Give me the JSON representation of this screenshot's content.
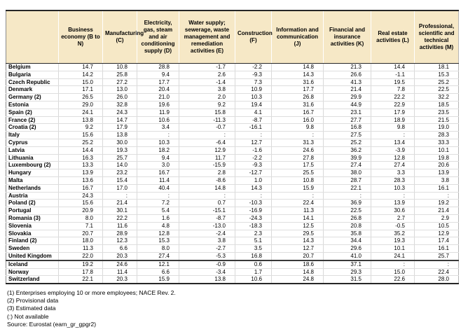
{
  "table": {
    "corner_label": "",
    "columns": [
      "Business economy (B to N)",
      "Manufacturing (C)",
      "Electricity, gas, steam and air conditioning supply (D)",
      "Water supply; sewerage, waste management and remediation activities (E)",
      "Construction (F)",
      "Information and communication (J)",
      "Financial and insurance activities (K)",
      "Real estate activities (L)",
      "Professional, scientific and technical activities (M)"
    ],
    "not_available_symbol": ":",
    "rows": [
      {
        "country": "Belgium",
        "group": "eu",
        "values": [
          "14.7",
          "10.8",
          "28.8",
          "-1.7",
          "-2.2",
          "14.8",
          "21.3",
          "14.4",
          "18.1"
        ]
      },
      {
        "country": "Bulgaria",
        "group": "eu",
        "values": [
          "14.2",
          "25.8",
          "9.4",
          "2.6",
          "-9.3",
          "14.3",
          "26.6",
          "-1.1",
          "15.3"
        ]
      },
      {
        "country": "Czech Republic",
        "group": "eu",
        "values": [
          "15.0",
          "27.2",
          "17.7",
          "-1.4",
          "7.3",
          "31.6",
          "41.3",
          "19.5",
          "25.2"
        ]
      },
      {
        "country": "Denmark",
        "group": "eu",
        "values": [
          "17.1",
          "13.0",
          "20.4",
          "3.8",
          "10.9",
          "17.7",
          "21.4",
          "7.8",
          "22.5"
        ]
      },
      {
        "country": "Germany (2)",
        "group": "eu",
        "values": [
          "26.5",
          "26.0",
          "21.0",
          "2.0",
          "10.3",
          "26.8",
          "29.9",
          "22.2",
          "32.2"
        ]
      },
      {
        "country": "Estonia",
        "group": "eu",
        "values": [
          "29.0",
          "32.8",
          "19.6",
          "9.2",
          "19.4",
          "31.6",
          "44.9",
          "22.9",
          "18.5"
        ]
      },
      {
        "country": "Spain (2)",
        "group": "eu",
        "values": [
          "24.1",
          "24.3",
          "11.9",
          "15.8",
          "4.1",
          "16.7",
          "23.1",
          "17.9",
          "23.5"
        ]
      },
      {
        "country": "France (2)",
        "group": "eu",
        "values": [
          "13.8",
          "14.7",
          "10.6",
          "-11.3",
          "-8.7",
          "16.0",
          "27.7",
          "18.9",
          "21.5"
        ]
      },
      {
        "country": "Croatia (2)",
        "group": "eu",
        "values": [
          "9.2",
          "17.9",
          "3.4",
          "-0.7",
          "-16.1",
          "9.8",
          "16.8",
          "9.8",
          "19.0"
        ]
      },
      {
        "country": "Italy",
        "group": "eu",
        "values": [
          "15.6",
          "13.8",
          ":",
          ":",
          ":",
          ":",
          "27.5",
          ":",
          "28.3"
        ]
      },
      {
        "country": "Cyprus",
        "group": "eu",
        "values": [
          "25.2",
          "30.0",
          "10.3",
          "-6.4",
          "12.7",
          "31.3",
          "25.2",
          "13.4",
          "33.3"
        ]
      },
      {
        "country": "Latvia",
        "group": "eu",
        "values": [
          "14.4",
          "19.3",
          "18.2",
          "12.9",
          "-1.6",
          "24.6",
          "36.2",
          "-3.9",
          "10.1"
        ]
      },
      {
        "country": "Lithuania",
        "group": "eu",
        "values": [
          "16.3",
          "25.7",
          "9.4",
          "11.7",
          "-2.2",
          "27.8",
          "39.9",
          "12.8",
          "19.8"
        ]
      },
      {
        "country": "Luxembourg (2)",
        "group": "eu",
        "values": [
          "13.3",
          "14.0",
          "3.0",
          "-15.9",
          "-9.3",
          "17.5",
          "27.4",
          "27.4",
          "20.6"
        ]
      },
      {
        "country": "Hungary",
        "group": "eu",
        "values": [
          "13.9",
          "23.2",
          "16.7",
          "2.8",
          "-12.7",
          "25.5",
          "38.0",
          "3.3",
          "13.9"
        ]
      },
      {
        "country": "Malta",
        "group": "eu",
        "values": [
          "13.6",
          "15.4",
          "11.4",
          "-8.6",
          "1.0",
          "10.8",
          "28.7",
          "28.3",
          "3.8"
        ]
      },
      {
        "country": "Netherlands",
        "group": "eu",
        "values": [
          "16.7",
          "17.0",
          "40.4",
          "14.8",
          "14.3",
          "15.9",
          "22.1",
          "10.3",
          "16.1"
        ]
      },
      {
        "country": "Austria",
        "group": "eu",
        "values": [
          "24.3",
          ":",
          ":",
          ":",
          ":",
          ":",
          ":",
          ":",
          ":"
        ]
      },
      {
        "country": "Poland (2)",
        "group": "eu",
        "values": [
          "15.6",
          "21.4",
          "7.2",
          "0.7",
          "-10.3",
          "22.4",
          "36.9",
          "13.9",
          "19.2"
        ]
      },
      {
        "country": "Portugal",
        "group": "eu",
        "values": [
          "20.9",
          "30.1",
          "5.4",
          "-15.1",
          "-16.9",
          "11.3",
          "22.5",
          "30.6",
          "21.4"
        ]
      },
      {
        "country": "Romania (3)",
        "group": "eu",
        "values": [
          "8.0",
          "22.2",
          "1.6",
          "-8.7",
          "-24.3",
          "14.1",
          "26.8",
          "2.7",
          "2.9"
        ]
      },
      {
        "country": "Slovenia",
        "group": "eu",
        "values": [
          "7.1",
          "11.6",
          "4.8",
          "-13.0",
          "-18.3",
          "12.5",
          "20.8",
          "-0.5",
          "10.5"
        ]
      },
      {
        "country": "Slovakia",
        "group": "eu",
        "values": [
          "20.7",
          "28.9",
          "12.8",
          "-2.4",
          "2.3",
          "29.5",
          "35.8",
          "35.2",
          "12.9"
        ]
      },
      {
        "country": "Finland (2)",
        "group": "eu",
        "values": [
          "18.0",
          "12.3",
          "15.3",
          "3.8",
          "5.1",
          "14.3",
          "34.4",
          "19.3",
          "17.4"
        ]
      },
      {
        "country": "Sweden",
        "group": "eu",
        "values": [
          "11.3",
          "6.6",
          "8.0",
          "-2.7",
          "3.5",
          "12.7",
          "29.6",
          "10.1",
          "16.1"
        ]
      },
      {
        "country": "United Kingdom",
        "group": "eu",
        "values": [
          "22.0",
          "20.3",
          "27.4",
          "-5.3",
          "16.8",
          "20.7",
          "41.0",
          "24.1",
          "25.7"
        ]
      },
      {
        "country": "Iceland",
        "group": "non-eu",
        "values": [
          "19.2",
          "24.6",
          "12.1",
          "-0.9",
          "0.6",
          "18.6",
          "37.1",
          ":",
          ":"
        ]
      },
      {
        "country": "Norway",
        "group": "non-eu",
        "values": [
          "17.8",
          "11.4",
          "6.6",
          "-3.4",
          "1.7",
          "14.8",
          "29.3",
          "15.0",
          "22.4"
        ]
      },
      {
        "country": "Switzerland",
        "group": "non-eu",
        "values": [
          "22.1",
          "20.3",
          "15.9",
          "13.8",
          "10.6",
          "24.8",
          "31.5",
          "22.6",
          "28.0"
        ]
      }
    ]
  },
  "footnotes": [
    "(1) Enterprises employing 10 or more employees; NACE Rev. 2.",
    "(2) Provisional data",
    "(3) Estimated data",
    "(:) Not available",
    "Source: Eurostat (earn_gr_gpgr2)"
  ],
  "colors": {
    "header_background": "#f6e8c6",
    "outer_border": "#262626",
    "grid_line": "#d9d9d9",
    "text": "#000000"
  }
}
